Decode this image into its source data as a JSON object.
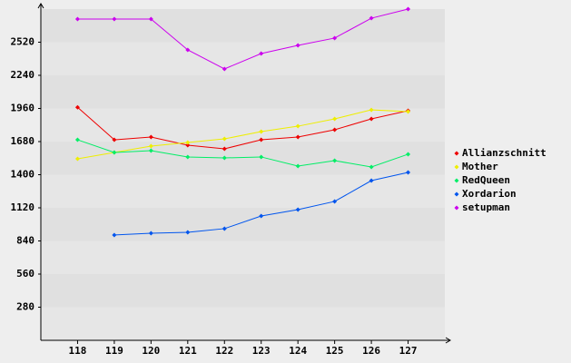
{
  "chart_data": {
    "type": "line",
    "categories": [
      "118",
      "119",
      "120",
      "121",
      "122",
      "123",
      "124",
      "125",
      "126",
      "127"
    ],
    "ylim": [
      0,
      2800
    ],
    "yticks": [
      280,
      560,
      840,
      1120,
      1400,
      1680,
      1960,
      2240,
      2520
    ],
    "grid": true,
    "legend": "right",
    "series": [
      {
        "name": "Allianzschnitt",
        "color": "#ee0000",
        "values": [
          1970,
          1695,
          1718,
          1649,
          1619,
          1695,
          1718,
          1780,
          1872,
          1941
        ]
      },
      {
        "name": "Mother",
        "color": "#eeee00",
        "values": [
          1534,
          1588,
          1642,
          1672,
          1703,
          1764,
          1810,
          1872,
          1948,
          1933
        ]
      },
      {
        "name": "RedQueen",
        "color": "#00ee66",
        "values": [
          1695,
          1588,
          1603,
          1550,
          1542,
          1550,
          1473,
          1519,
          1465,
          1573
        ]
      },
      {
        "name": "Xordarion",
        "color": "#0055ee",
        "values": [
          null,
          890,
          905,
          913,
          944,
          1051,
          1105,
          1174,
          1350,
          1419
        ]
      },
      {
        "name": "setupman",
        "color": "#cc00ee",
        "values": [
          2716,
          2716,
          2716,
          2455,
          2294,
          2424,
          2493,
          2555,
          2723,
          2800
        ]
      }
    ]
  }
}
